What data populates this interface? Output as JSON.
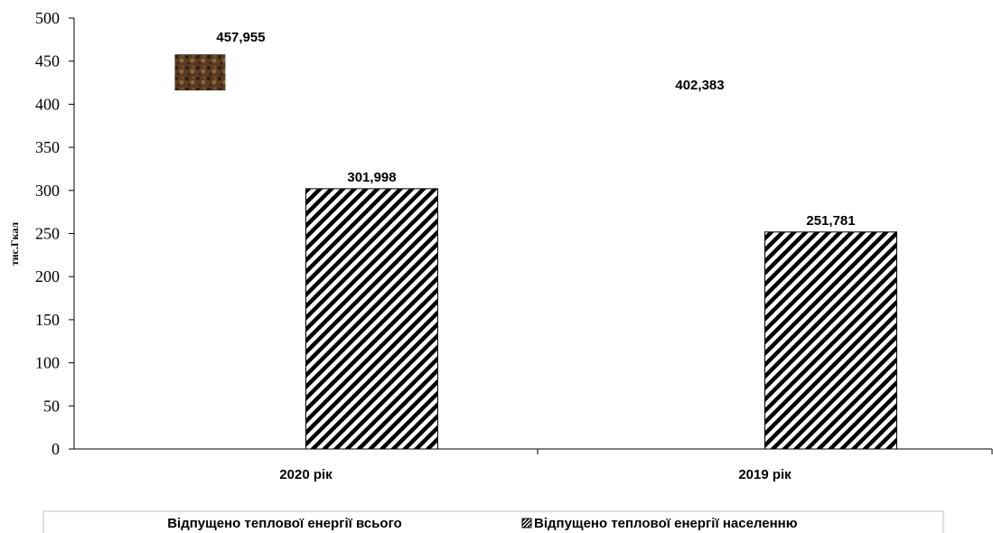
{
  "chart_data": {
    "type": "bar",
    "ylabel": "тис.Гкал",
    "ylim": [
      0,
      500
    ],
    "yticks": [
      0,
      50,
      100,
      150,
      200,
      250,
      300,
      350,
      400,
      450,
      500
    ],
    "categories": [
      "2020 рік",
      "2019 рік"
    ],
    "series": [
      {
        "name": "Відпущено теплової енергії всього",
        "values": [
          457.955,
          402.383
        ],
        "labels": [
          "457,955",
          "402,383"
        ],
        "pattern": "texture"
      },
      {
        "name": "Відпущено теплової енергії населенню",
        "values": [
          301.998,
          251.781
        ],
        "labels": [
          "301,998",
          "251,781"
        ],
        "pattern": "diagonal-hatch"
      }
    ],
    "legend_position": "bottom",
    "grid": false
  },
  "colors": {
    "texture_base": "#5a3a22",
    "texture_dark": "#2e1c10",
    "texture_light": "#8a6640",
    "hatch": "#000000"
  }
}
